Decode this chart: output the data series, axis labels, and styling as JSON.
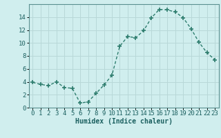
{
  "x": [
    0,
    1,
    2,
    3,
    4,
    5,
    6,
    7,
    8,
    9,
    10,
    11,
    12,
    13,
    14,
    15,
    16,
    17,
    18,
    19,
    20,
    21,
    22,
    23
  ],
  "y": [
    3.9,
    3.6,
    3.4,
    4.0,
    3.1,
    3.0,
    0.7,
    0.9,
    2.2,
    3.5,
    5.0,
    9.5,
    11.0,
    10.8,
    11.9,
    13.9,
    15.2,
    15.1,
    14.8,
    13.9,
    12.2,
    10.1,
    8.5,
    7.4
  ],
  "line_color": "#2e7d6e",
  "marker": "+",
  "markersize": 4,
  "markeredgewidth": 1.2,
  "linewidth": 1.0,
  "bg_color": "#d0eeee",
  "grid_color": "#b8d8d8",
  "xlabel": "Humidex (Indice chaleur)",
  "xlabel_fontsize": 7,
  "tick_fontsize": 6.5,
  "xlim": [
    -0.5,
    23.5
  ],
  "ylim": [
    0,
    16
  ],
  "yticks": [
    0,
    2,
    4,
    6,
    8,
    10,
    12,
    14
  ],
  "xticks": [
    0,
    1,
    2,
    3,
    4,
    5,
    6,
    7,
    8,
    9,
    10,
    11,
    12,
    13,
    14,
    15,
    16,
    17,
    18,
    19,
    20,
    21,
    22,
    23
  ]
}
